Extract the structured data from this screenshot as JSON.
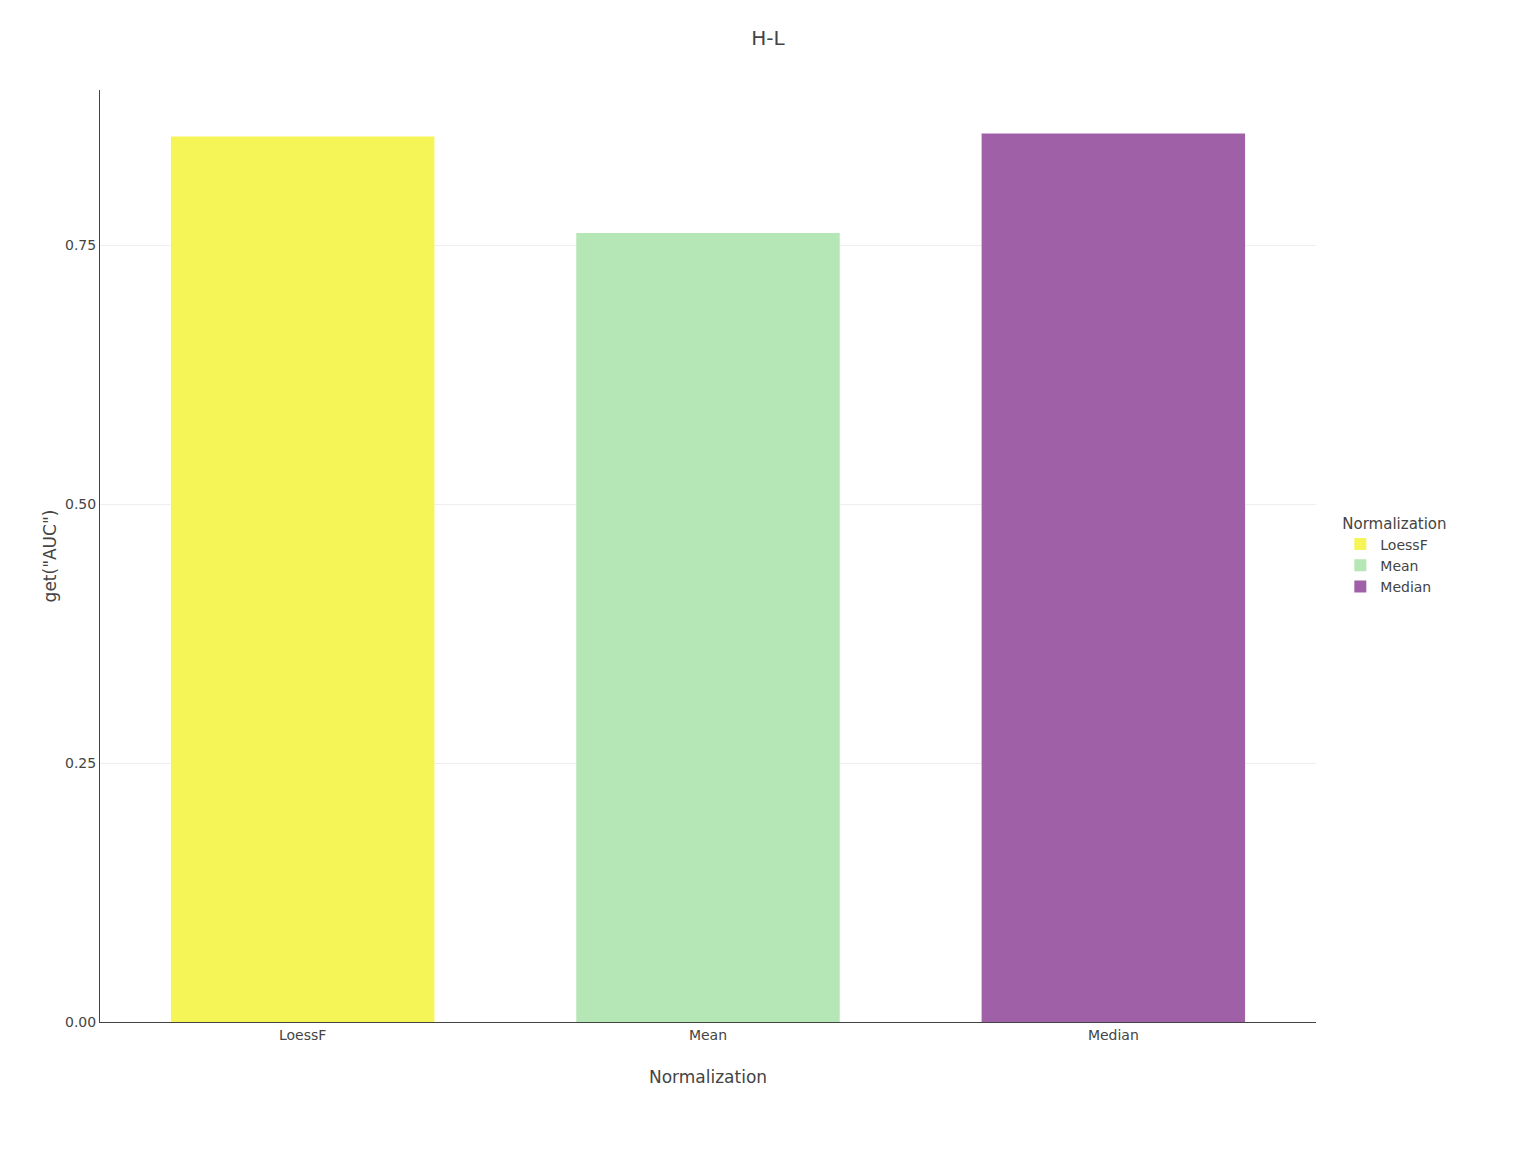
{
  "chart_data": {
    "type": "bar",
    "title": "H-L",
    "categories": [
      "LoessF",
      "Mean",
      "Median"
    ],
    "values": [
      0.855,
      0.762,
      0.858
    ],
    "colors": [
      "#F5F558",
      "#B5E6B5",
      "#A060A8"
    ],
    "xlabel": "Normalization",
    "ylabel": "get(\"AUC\")",
    "legend_title": "Normalization",
    "legend": "right",
    "ylim": [
      0,
      0.9
    ],
    "yticks": [
      {
        "value": 0,
        "label": "0.00"
      },
      {
        "value": 0.25,
        "label": "0.25"
      },
      {
        "value": 0.5,
        "label": "0.50"
      },
      {
        "value": 0.75,
        "label": "0.75"
      }
    ],
    "grid": true
  }
}
